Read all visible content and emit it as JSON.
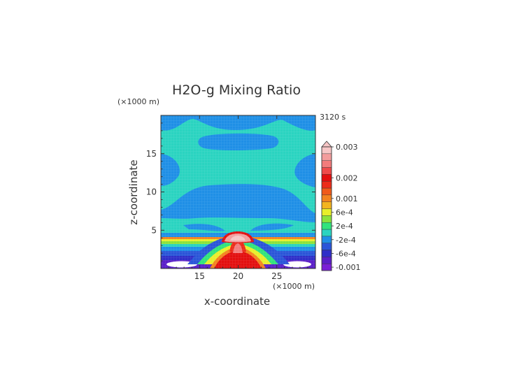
{
  "chart_data": {
    "type": "heatmap",
    "title": "H2O-g Mixing Ratio",
    "time_label": "3120 s",
    "xlabel": "x-coordinate",
    "ylabel": "z-coordinate",
    "x_unit": "(×1000 m)",
    "y_unit": "(×1000 m)",
    "xlim": [
      10,
      30
    ],
    "ylim": [
      0,
      20
    ],
    "x_ticks": [
      15,
      20,
      25
    ],
    "y_ticks": [
      5,
      10,
      15
    ],
    "grid": false,
    "colorbar": {
      "position": "right",
      "levels": [
        {
          "value": "-0.001",
          "color": "#7a1fd6"
        },
        {
          "value": "-8e-4",
          "color": "#5a1fc8"
        },
        {
          "value": "-6e-4",
          "color": "#2f2fc8"
        },
        {
          "value": "-4e-4",
          "color": "#2a55d8"
        },
        {
          "value": "-2e-4",
          "color": "#1f8fe6"
        },
        {
          "value": "0",
          "color": "#2ad4c0"
        },
        {
          "value": "2e-4",
          "color": "#31e37c"
        },
        {
          "value": "4e-4",
          "color": "#8be23c"
        },
        {
          "value": "6e-4",
          "color": "#e8ee2a"
        },
        {
          "value": "8e-4",
          "color": "#f3b41f"
        },
        {
          "value": "0.001",
          "color": "#f3831f"
        },
        {
          "value": "0.0012",
          "color": "#f05a1a"
        },
        {
          "value": "0.0015",
          "color": "#ec2d1a"
        },
        {
          "value": "0.002",
          "color": "#e30f0f"
        },
        {
          "value": "0.0022",
          "color": "#ef4a4a"
        },
        {
          "value": "0.0025",
          "color": "#f27b7b"
        },
        {
          "value": "0.0028",
          "color": "#f39d9d"
        },
        {
          "value": "0.003",
          "color": "#f7c6c6"
        }
      ],
      "tick_labels": [
        "0.003",
        "0.002",
        "0.001",
        "6e-4",
        "2e-4",
        "-2e-4",
        "-6e-4",
        "-0.001"
      ]
    },
    "regions": [
      {
        "description": "background",
        "value": "0"
      },
      {
        "name": "top-band",
        "value": "-2e-4"
      },
      {
        "name": "upper-blob",
        "value": "-2e-4"
      },
      {
        "name": "mid-band",
        "value": "-2e-4"
      },
      {
        "name": "plume-core",
        "value": "0.003"
      },
      {
        "name": "surface-layer",
        "value": "-0.001"
      }
    ]
  }
}
